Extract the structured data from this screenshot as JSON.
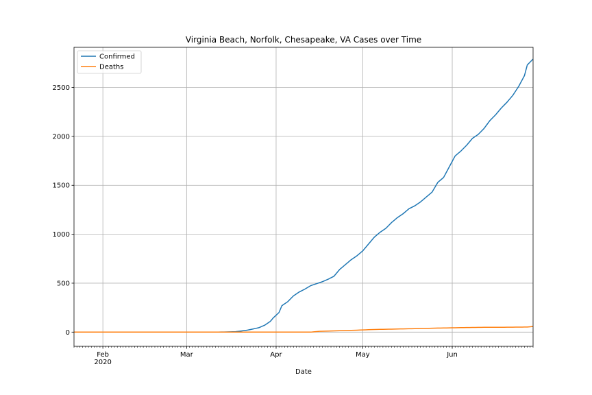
{
  "chart_data": {
    "type": "line",
    "title": "Virginia Beach, Norfolk, Chesapeake, VA Cases over Time",
    "xlabel": "Date",
    "ylabel": "",
    "x_range": [
      "2020-01-22",
      "2020-06-29"
    ],
    "ylim": [
      -145,
      2910
    ],
    "yticks": [
      0,
      500,
      1000,
      1500,
      2000,
      2500
    ],
    "xticks": [
      {
        "date": "2020-02-01",
        "label": "Feb",
        "sublabel": "2020"
      },
      {
        "date": "2020-03-01",
        "label": "Mar",
        "sublabel": ""
      },
      {
        "date": "2020-04-01",
        "label": "Apr",
        "sublabel": ""
      },
      {
        "date": "2020-05-01",
        "label": "May",
        "sublabel": ""
      },
      {
        "date": "2020-06-01",
        "label": "Jun",
        "sublabel": ""
      }
    ],
    "grid": true,
    "legend_position": "top-left",
    "series": [
      {
        "name": "Confirmed",
        "color": "#1f77b4",
        "points": [
          [
            "2020-01-22",
            0
          ],
          [
            "2020-03-01",
            0
          ],
          [
            "2020-03-10",
            0
          ],
          [
            "2020-03-15",
            2
          ],
          [
            "2020-03-18",
            5
          ],
          [
            "2020-03-20",
            12
          ],
          [
            "2020-03-22",
            20
          ],
          [
            "2020-03-24",
            32
          ],
          [
            "2020-03-26",
            45
          ],
          [
            "2020-03-28",
            70
          ],
          [
            "2020-03-30",
            110
          ],
          [
            "2020-03-31",
            145
          ],
          [
            "2020-04-02",
            200
          ],
          [
            "2020-04-03",
            270
          ],
          [
            "2020-04-05",
            310
          ],
          [
            "2020-04-07",
            370
          ],
          [
            "2020-04-09",
            410
          ],
          [
            "2020-04-11",
            440
          ],
          [
            "2020-04-13",
            475
          ],
          [
            "2020-04-15",
            495
          ],
          [
            "2020-04-17",
            515
          ],
          [
            "2020-04-19",
            540
          ],
          [
            "2020-04-21",
            570
          ],
          [
            "2020-04-23",
            640
          ],
          [
            "2020-04-25",
            690
          ],
          [
            "2020-04-27",
            740
          ],
          [
            "2020-04-29",
            780
          ],
          [
            "2020-05-01",
            830
          ],
          [
            "2020-05-03",
            900
          ],
          [
            "2020-05-05",
            970
          ],
          [
            "2020-05-07",
            1020
          ],
          [
            "2020-05-09",
            1060
          ],
          [
            "2020-05-11",
            1120
          ],
          [
            "2020-05-13",
            1170
          ],
          [
            "2020-05-15",
            1210
          ],
          [
            "2020-05-17",
            1260
          ],
          [
            "2020-05-19",
            1290
          ],
          [
            "2020-05-21",
            1330
          ],
          [
            "2020-05-23",
            1380
          ],
          [
            "2020-05-25",
            1430
          ],
          [
            "2020-05-27",
            1530
          ],
          [
            "2020-05-29",
            1580
          ],
          [
            "2020-05-31",
            1690
          ],
          [
            "2020-06-02",
            1800
          ],
          [
            "2020-06-04",
            1850
          ],
          [
            "2020-06-06",
            1910
          ],
          [
            "2020-06-08",
            1980
          ],
          [
            "2020-06-10",
            2020
          ],
          [
            "2020-06-12",
            2080
          ],
          [
            "2020-06-14",
            2160
          ],
          [
            "2020-06-16",
            2220
          ],
          [
            "2020-06-18",
            2290
          ],
          [
            "2020-06-20",
            2350
          ],
          [
            "2020-06-22",
            2420
          ],
          [
            "2020-06-24",
            2510
          ],
          [
            "2020-06-26",
            2620
          ],
          [
            "2020-06-27",
            2730
          ],
          [
            "2020-06-29",
            2790
          ]
        ]
      },
      {
        "name": "Deaths",
        "color": "#ff7f0e",
        "points": [
          [
            "2020-01-22",
            0
          ],
          [
            "2020-04-13",
            0
          ],
          [
            "2020-04-16",
            8
          ],
          [
            "2020-04-20",
            12
          ],
          [
            "2020-04-25",
            16
          ],
          [
            "2020-05-01",
            22
          ],
          [
            "2020-05-05",
            27
          ],
          [
            "2020-05-10",
            30
          ],
          [
            "2020-05-15",
            33
          ],
          [
            "2020-05-20",
            36
          ],
          [
            "2020-05-25",
            40
          ],
          [
            "2020-06-01",
            44
          ],
          [
            "2020-06-07",
            47
          ],
          [
            "2020-06-12",
            49
          ],
          [
            "2020-06-20",
            50
          ],
          [
            "2020-06-27",
            52
          ],
          [
            "2020-06-29",
            58
          ]
        ]
      }
    ]
  }
}
